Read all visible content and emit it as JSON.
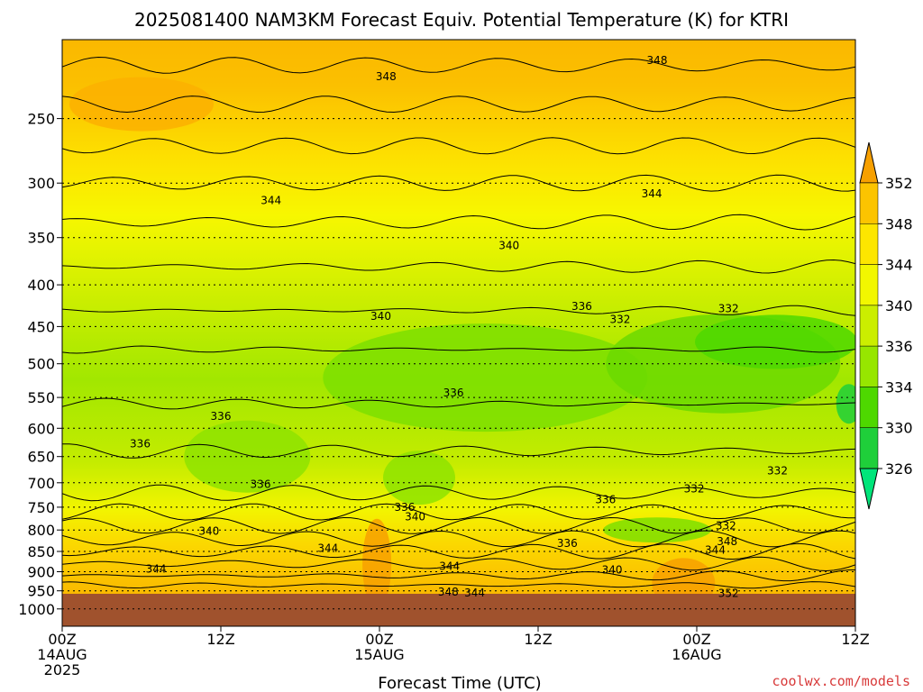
{
  "chart_data": {
    "type": "heatmap",
    "title": "2025081400 NAM3KM Forecast Equiv. Potential Temperature (K) for KTRI",
    "xlabel": "Forecast Time (UTC)",
    "ylabel": "",
    "x_ticks": [
      {
        "lines": [
          "00Z",
          "14AUG",
          "2025"
        ],
        "hours": 0
      },
      {
        "lines": [
          "12Z"
        ],
        "hours": 12
      },
      {
        "lines": [
          "00Z",
          "15AUG"
        ],
        "hours": 24
      },
      {
        "lines": [
          "12Z"
        ],
        "hours": 36
      },
      {
        "lines": [
          "00Z",
          "16AUG"
        ],
        "hours": 48
      },
      {
        "lines": [
          "12Z"
        ],
        "hours": 60
      }
    ],
    "xlim_hours": [
      0,
      60
    ],
    "y_scale": "log",
    "y_ticks": [
      "250",
      "300",
      "350",
      "400",
      "450",
      "500",
      "550",
      "600",
      "650",
      "700",
      "750",
      "800",
      "850",
      "900",
      "950",
      "1000"
    ],
    "ylim_hpa": [
      200,
      1050
    ],
    "surface_pressure_hpa": 958,
    "grid": true,
    "colorbar": {
      "labels": [
        "352",
        "348",
        "344",
        "340",
        "336",
        "334",
        "330",
        "326"
      ],
      "colors": [
        "#f7a000",
        "#fcc400",
        "#fde600",
        "#f2f700",
        "#cbee00",
        "#97e600",
        "#4ed800",
        "#1fcf3a",
        "#00e57a"
      ],
      "extend": "both"
    },
    "contour_labels": [
      {
        "text": "348",
        "hours": 24.5,
        "hpa": 222
      },
      {
        "text": "348",
        "hours": 45,
        "hpa": 212
      },
      {
        "text": "344",
        "hours": 15.8,
        "hpa": 315
      },
      {
        "text": "344",
        "hours": 44.6,
        "hpa": 309
      },
      {
        "text": "340",
        "hours": 33.8,
        "hpa": 358
      },
      {
        "text": "340",
        "hours": 24.1,
        "hpa": 437
      },
      {
        "text": "336",
        "hours": 39.3,
        "hpa": 425
      },
      {
        "text": "332",
        "hours": 42.2,
        "hpa": 441
      },
      {
        "text": "332",
        "hours": 50.4,
        "hpa": 428
      },
      {
        "text": "336",
        "hours": 29.6,
        "hpa": 543
      },
      {
        "text": "336",
        "hours": 12,
        "hpa": 580
      },
      {
        "text": "336",
        "hours": 5.9,
        "hpa": 627
      },
      {
        "text": "336",
        "hours": 15,
        "hpa": 703
      },
      {
        "text": "332",
        "hours": 54.1,
        "hpa": 677
      },
      {
        "text": "336",
        "hours": 41.1,
        "hpa": 734
      },
      {
        "text": "332",
        "hours": 47.8,
        "hpa": 712
      },
      {
        "text": "336",
        "hours": 25.9,
        "hpa": 750
      },
      {
        "text": "340",
        "hours": 26.7,
        "hpa": 771
      },
      {
        "text": "340",
        "hours": 11.1,
        "hpa": 803
      },
      {
        "text": "332",
        "hours": 50.2,
        "hpa": 790
      },
      {
        "text": "336",
        "hours": 38.2,
        "hpa": 831
      },
      {
        "text": "344",
        "hours": 29.3,
        "hpa": 886
      },
      {
        "text": "344",
        "hours": 7.1,
        "hpa": 893
      },
      {
        "text": "340",
        "hours": 41.6,
        "hpa": 896
      },
      {
        "text": "348",
        "hours": 50.3,
        "hpa": 826
      },
      {
        "text": "344",
        "hours": 49.4,
        "hpa": 847
      },
      {
        "text": "344",
        "hours": 20.1,
        "hpa": 842
      },
      {
        "text": "348",
        "hours": 29.2,
        "hpa": 953
      },
      {
        "text": "344",
        "hours": 31.2,
        "hpa": 956
      },
      {
        "text": "352",
        "hours": 50.4,
        "hpa": 957
      }
    ]
  },
  "credit": "coolwx.com/models"
}
